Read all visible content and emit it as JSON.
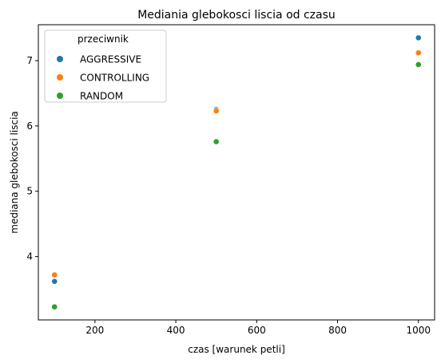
{
  "chart_data": {
    "type": "scatter",
    "title": "Mediania glebokosci liscia od czasu",
    "xlabel": "czas [warunek petli]",
    "ylabel": "mediana glebokosci liscia",
    "xlim": [
      60,
      1040
    ],
    "ylim": [
      3.03,
      7.55
    ],
    "xticks": [
      200,
      400,
      600,
      800,
      1000
    ],
    "yticks": [
      4,
      5,
      6,
      7
    ],
    "legend_title": "przeciwnik",
    "legend_position": "top-left",
    "grid": false,
    "series": [
      {
        "name": "AGGRESSIVE",
        "color": "#1f77b4",
        "x": [
          100,
          500,
          1000
        ],
        "y": [
          3.62,
          6.25,
          7.35
        ]
      },
      {
        "name": "CONTROLLING",
        "color": "#ff7f0e",
        "x": [
          100,
          500,
          1000
        ],
        "y": [
          3.72,
          6.23,
          7.12
        ]
      },
      {
        "name": "RANDOM",
        "color": "#2ca02c",
        "x": [
          100,
          500,
          1000
        ],
        "y": [
          3.23,
          5.76,
          6.94
        ]
      }
    ]
  }
}
